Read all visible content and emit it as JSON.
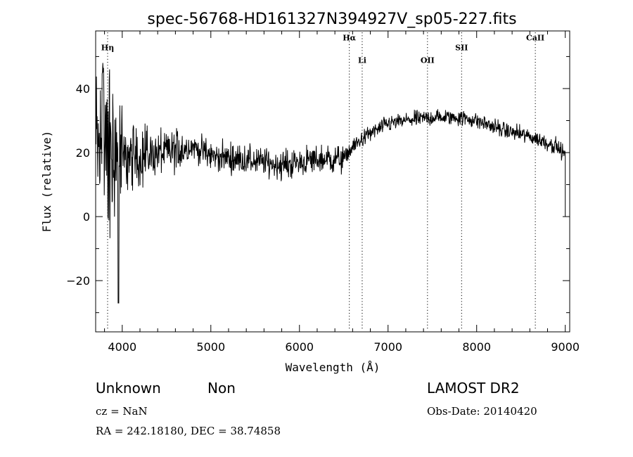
{
  "chart_data": {
    "type": "line",
    "title": "spec-56768-HD161327N394927V_sp05-227.fits",
    "xlabel": "Wavelength (Å)",
    "ylabel": "Flux (relative)",
    "xlim": [
      3700,
      9050
    ],
    "ylim": [
      -36,
      58
    ],
    "xticks": [
      4000,
      5000,
      6000,
      7000,
      8000,
      9000
    ],
    "yticks": [
      -20,
      0,
      20,
      40
    ],
    "yticks_display": [
      "−20",
      "0",
      "20",
      "40"
    ],
    "grid": false,
    "spectral_lines": [
      {
        "name": "Hη",
        "wavelength": 3835,
        "label_y": 52
      },
      {
        "name": "Hα",
        "wavelength": 6563,
        "label_y": 55
      },
      {
        "name": "Li",
        "wavelength": 6708,
        "label_y": 48
      },
      {
        "name": "OII",
        "wavelength": 7445,
        "label_y": 48
      },
      {
        "name": "SII",
        "wavelength": 7830,
        "label_y": 52
      },
      {
        "name": "CaII",
        "wavelength": 8662,
        "label_y": 55
      }
    ],
    "spectrum_anchors": {
      "wavelength": [
        3700,
        3800,
        3900,
        4000,
        4200,
        4500,
        4800,
        5000,
        5300,
        5600,
        5800,
        6000,
        6300,
        6500,
        6550,
        6650,
        6800,
        7000,
        7200,
        7500,
        7800,
        8000,
        8300,
        8600,
        8900,
        9000
      ],
      "flux": [
        20,
        20,
        19,
        18,
        19,
        20,
        22,
        19,
        18,
        17,
        16,
        17,
        18,
        18,
        20,
        23,
        26,
        29,
        30,
        31,
        31,
        30,
        27,
        25,
        22,
        19
      ]
    },
    "series": [
      {
        "values_note": "",
        "name": ""
      }
    ]
  },
  "info": {
    "object_class": "Unknown",
    "subclass": "Non",
    "survey": "LAMOST DR2",
    "cz": "cz = NaN",
    "obs_date": "Obs-Date: 20140420",
    "coords": "RA = 242.18180, DEC =  38.74858"
  }
}
